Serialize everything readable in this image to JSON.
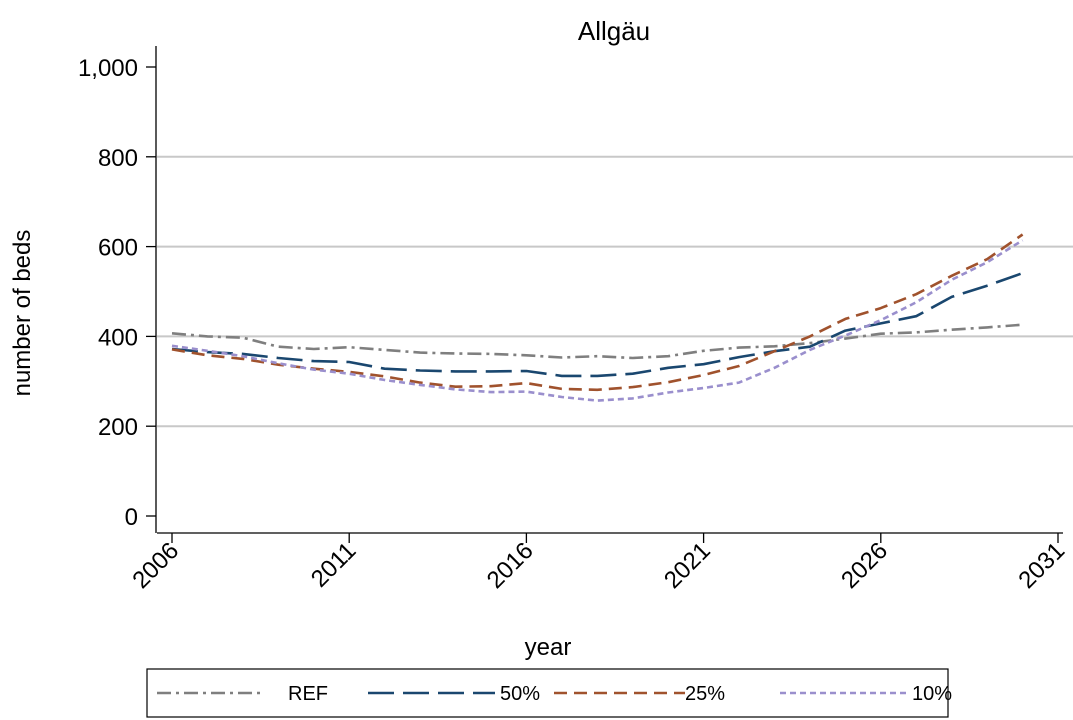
{
  "chart_data": {
    "type": "line",
    "title": "Allgäu",
    "xlabel": "year",
    "ylabel": "number of beds",
    "xlim": [
      2006,
      2031
    ],
    "ylim": [
      0,
      1000
    ],
    "xticks": [
      "2006",
      "2011",
      "2016",
      "2021",
      "2026",
      "2031"
    ],
    "yticks": [
      "0",
      "200",
      "400",
      "600",
      "800",
      "1,000"
    ],
    "grid": true,
    "legend_position": "bottom",
    "x": [
      2006,
      2007,
      2008,
      2009,
      2010,
      2011,
      2012,
      2013,
      2014,
      2015,
      2016,
      2017,
      2018,
      2019,
      2020,
      2021,
      2022,
      2023,
      2024,
      2025,
      2026,
      2027,
      2028,
      2029,
      2030
    ],
    "series": [
      {
        "name": "REF",
        "color": "#7f7f7f",
        "dash": "dashdot",
        "values": [
          407,
          400,
          397,
          377,
          372,
          376,
          370,
          364,
          362,
          361,
          358,
          353,
          356,
          352,
          356,
          368,
          375,
          378,
          385,
          395,
          406,
          409,
          415,
          420,
          426
        ]
      },
      {
        "name": "50%",
        "color": "#1a476f",
        "dash": "longdash",
        "values": [
          372,
          365,
          361,
          352,
          345,
          343,
          328,
          324,
          322,
          322,
          323,
          312,
          312,
          317,
          330,
          338,
          354,
          367,
          377,
          413,
          429,
          445,
          488,
          513,
          541
        ]
      },
      {
        "name": "25%",
        "color": "#a0522d",
        "dash": "dash",
        "values": [
          371,
          358,
          350,
          337,
          328,
          321,
          311,
          297,
          288,
          289,
          296,
          283,
          281,
          287,
          298,
          314,
          334,
          367,
          400,
          439,
          463,
          494,
          535,
          572,
          627
        ]
      },
      {
        "name": "10%",
        "color": "#9a8fcd",
        "dash": "shortdash",
        "values": [
          379,
          368,
          356,
          340,
          326,
          317,
          303,
          292,
          282,
          276,
          277,
          265,
          257,
          262,
          275,
          285,
          297,
          330,
          370,
          402,
          436,
          476,
          526,
          565,
          614
        ]
      }
    ]
  }
}
